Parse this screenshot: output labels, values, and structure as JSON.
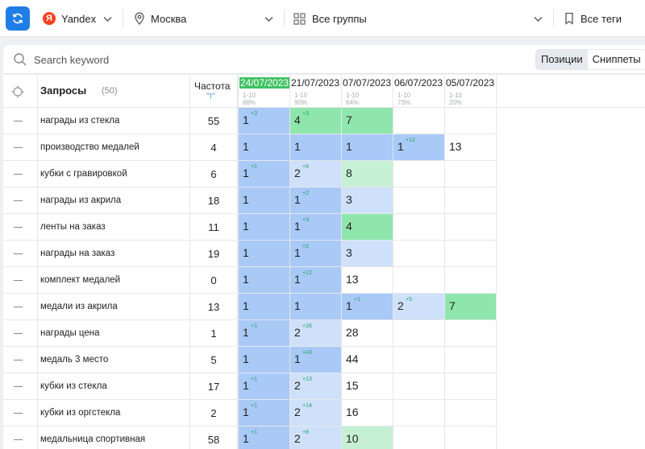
{
  "toolbar": {
    "search_engine": "Yandex",
    "yandex_letter": "Я",
    "region": "Москва",
    "groups": "Все группы",
    "tags": "Все теги"
  },
  "search": {
    "placeholder": "Search keyword"
  },
  "view_tabs": {
    "positions": "Позиции",
    "snippets": "Сниппеты",
    "active": "positions"
  },
  "table": {
    "queries_label": "Запросы",
    "queries_count": "(50)",
    "freq_label": "Частота",
    "freq_sub": "\"!\"",
    "dates": [
      {
        "date": "24/07/2023",
        "range": "1-10",
        "pct": "88%",
        "current": true
      },
      {
        "date": "21/07/2023",
        "range": "1-10",
        "pct": "90%"
      },
      {
        "date": "07/07/2023",
        "range": "1-10",
        "pct": "64%"
      },
      {
        "date": "06/07/2023",
        "range": "1-10",
        "pct": "73%"
      },
      {
        "date": "05/07/2023",
        "range": "1-10",
        "pct": "20%"
      }
    ],
    "rows": [
      {
        "q": "награды из стекла",
        "f": "55",
        "p": [
          [
            "1",
            "+3"
          ],
          [
            "4",
            "+3"
          ],
          [
            "7",
            ""
          ],
          [
            "",
            ""
          ],
          [
            "",
            ""
          ]
        ]
      },
      {
        "q": "производство медалей",
        "f": "4",
        "p": [
          [
            "1",
            ""
          ],
          [
            "1",
            ""
          ],
          [
            "1",
            ""
          ],
          [
            "1",
            "+12"
          ],
          [
            "13",
            ""
          ]
        ]
      },
      {
        "q": "кубки с гравировкой",
        "f": "6",
        "p": [
          [
            "1",
            "+1"
          ],
          [
            "2",
            "+6"
          ],
          [
            "8",
            ""
          ],
          [
            "",
            ""
          ],
          [
            "",
            ""
          ]
        ]
      },
      {
        "q": "награды из акрила",
        "f": "18",
        "p": [
          [
            "1",
            ""
          ],
          [
            "1",
            "+2"
          ],
          [
            "3",
            ""
          ],
          [
            "",
            ""
          ],
          [
            "",
            ""
          ]
        ]
      },
      {
        "q": "ленты на заказ",
        "f": "11",
        "p": [
          [
            "1",
            ""
          ],
          [
            "1",
            "+3"
          ],
          [
            "4",
            ""
          ],
          [
            "",
            ""
          ],
          [
            "",
            ""
          ]
        ]
      },
      {
        "q": "награды на заказ",
        "f": "19",
        "p": [
          [
            "1",
            ""
          ],
          [
            "1",
            "+2"
          ],
          [
            "3",
            ""
          ],
          [
            "",
            ""
          ],
          [
            "",
            ""
          ]
        ]
      },
      {
        "q": "комплект медалей",
        "f": "0",
        "p": [
          [
            "1",
            ""
          ],
          [
            "1",
            "+12"
          ],
          [
            "13",
            ""
          ],
          [
            "",
            ""
          ],
          [
            "",
            ""
          ]
        ]
      },
      {
        "q": "медали из акрила",
        "f": "13",
        "p": [
          [
            "1",
            ""
          ],
          [
            "1",
            ""
          ],
          [
            "1",
            "+1"
          ],
          [
            "2",
            "+5"
          ],
          [
            "7",
            ""
          ]
        ]
      },
      {
        "q": "награды цена",
        "f": "1",
        "p": [
          [
            "1",
            "+1"
          ],
          [
            "2",
            "+26"
          ],
          [
            "28",
            ""
          ],
          [
            "",
            ""
          ],
          [
            "",
            ""
          ]
        ]
      },
      {
        "q": "медаль 3 место",
        "f": "5",
        "p": [
          [
            "1",
            ""
          ],
          [
            "1",
            "+43"
          ],
          [
            "44",
            ""
          ],
          [
            "",
            ""
          ],
          [
            "",
            ""
          ]
        ]
      },
      {
        "q": "кубки из стекла",
        "f": "17",
        "p": [
          [
            "1",
            "+1"
          ],
          [
            "2",
            "+13"
          ],
          [
            "15",
            ""
          ],
          [
            "",
            ""
          ],
          [
            "",
            ""
          ]
        ]
      },
      {
        "q": "кубки из оргстекла",
        "f": "2",
        "p": [
          [
            "1",
            "+1"
          ],
          [
            "2",
            "+14"
          ],
          [
            "16",
            ""
          ],
          [
            "",
            ""
          ],
          [
            "",
            ""
          ]
        ]
      },
      {
        "q": "медальница спортивная",
        "f": "58",
        "p": [
          [
            "1",
            "+1"
          ],
          [
            "2",
            "+8"
          ],
          [
            "10",
            ""
          ],
          [
            "",
            ""
          ],
          [
            "",
            ""
          ]
        ]
      }
    ]
  },
  "colors": {
    "accent": "#1f7ee6",
    "top1": "#a9c9f7",
    "top3": "#cfe1fa",
    "top10": "#c6f0d4",
    "top10_strong": "#8fe6ad",
    "current_date": "#3fc263",
    "delta_up": "#22a36a"
  }
}
